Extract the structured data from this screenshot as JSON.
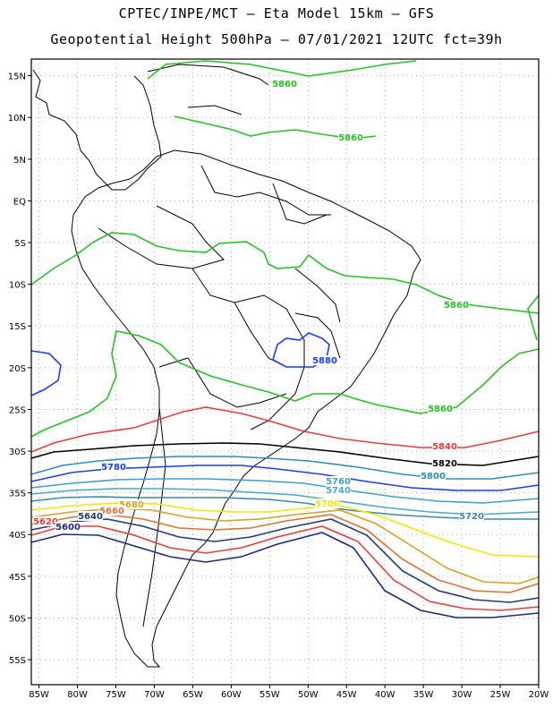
{
  "header": {
    "line1": "CPTEC/INPE/MCT –  Eta Model 15km – GFS",
    "line2": "Geopotential Height 500hPa – 07/01/2021 12UTC fct=39h"
  },
  "axes": {
    "lat_ticks": [
      "15N",
      "10N",
      "5N",
      "EQ",
      "5S",
      "10S",
      "15S",
      "20S",
      "25S",
      "30S",
      "35S",
      "40S",
      "45S",
      "50S",
      "55S"
    ],
    "lon_ticks": [
      "85W",
      "80W",
      "75W",
      "70W",
      "65W",
      "60W",
      "55W",
      "50W",
      "45W",
      "40W",
      "35W",
      "30W",
      "25W",
      "20W"
    ],
    "lat_range": [
      17,
      -58
    ],
    "lon_range": [
      -86,
      -20
    ]
  },
  "contours": [
    {
      "level": 5880,
      "label": "5880",
      "color": "#1a3cff"
    },
    {
      "level": 5860,
      "label": "5860",
      "color": "#22c422"
    },
    {
      "level": 5840,
      "label": "5840",
      "color": "#e83c3c"
    },
    {
      "level": 5820,
      "label": "5820",
      "color": "#000000"
    },
    {
      "level": 5800,
      "label": "5800",
      "color": "#2a8fb5"
    },
    {
      "level": 5780,
      "label": "5780",
      "color": "#1a3cff"
    },
    {
      "level": 5760,
      "label": "5760",
      "color": "#3aa0c8"
    },
    {
      "level": 5740,
      "label": "5740",
      "color": "#48a8c8"
    },
    {
      "level": 5720,
      "label": "5720",
      "color": "#3a88b0"
    },
    {
      "level": 5700,
      "label": "5700",
      "color": "#f2e600"
    },
    {
      "level": 5680,
      "label": "5680",
      "color": "#d8a020"
    },
    {
      "level": 5660,
      "label": "5660",
      "color": "#e07030"
    },
    {
      "level": 5640,
      "label": "5640",
      "color": "#1e3a78"
    },
    {
      "level": 5620,
      "label": "5620",
      "color": "#e83c3c"
    },
    {
      "level": 5600,
      "label": "5600",
      "color": "#1a2a80"
    }
  ],
  "colors": {
    "frame": "#000000",
    "grid": "#9a9a9a",
    "coast": "#000000"
  }
}
